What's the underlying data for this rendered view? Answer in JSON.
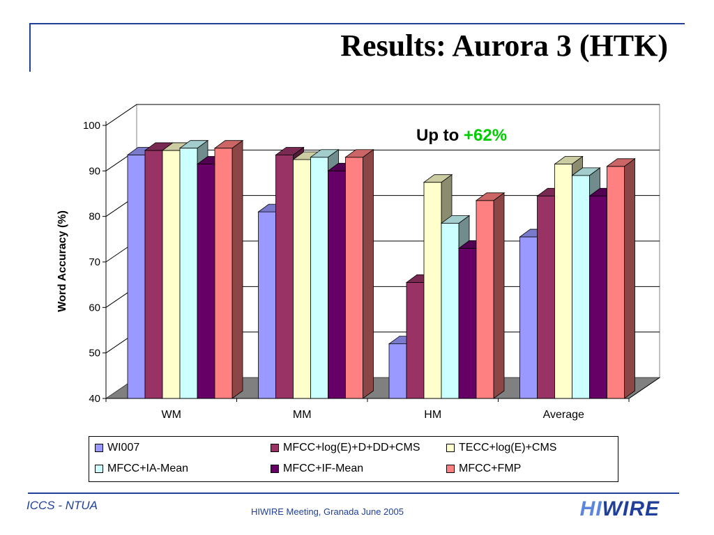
{
  "slide": {
    "title": "Results: Aurora 3 (HTK)",
    "footer_left": "ICCS - NTUA",
    "footer_center": "HIWIRE Meeting, Granada June 2005",
    "logo_part1": "HI",
    "logo_part2": "WIRE",
    "accent_color": "#1f3f9a"
  },
  "chart_data": {
    "type": "bar",
    "title": "",
    "xlabel": "",
    "ylabel": "Word Accuracy (%)",
    "ylim": [
      40,
      100
    ],
    "yticks": [
      40,
      50,
      60,
      70,
      80,
      90,
      100
    ],
    "grid": true,
    "legend_position": "bottom",
    "categories": [
      "WM",
      "MM",
      "HM",
      "Average"
    ],
    "annotation": {
      "prefix": "Up to ",
      "value": "+62%",
      "value_color": "#00cc00"
    },
    "series": [
      {
        "name": "WI007",
        "color": "#9999ff",
        "values": [
          93.5,
          81.0,
          52.0,
          75.5
        ]
      },
      {
        "name": "MFCC+log(E)+D+DD+CMS",
        "color": "#993366",
        "values": [
          94.5,
          93.5,
          65.5,
          84.5
        ]
      },
      {
        "name": "TECC+log(E)+CMS",
        "color": "#ffffcc",
        "values": [
          94.5,
          92.5,
          87.5,
          91.5
        ]
      },
      {
        "name": "MFCC+IA-Mean",
        "color": "#ccffff",
        "values": [
          95.0,
          93.0,
          78.5,
          89.0
        ]
      },
      {
        "name": "MFCC+IF-Mean",
        "color": "#660066",
        "values": [
          91.5,
          90.0,
          73.0,
          84.5
        ]
      },
      {
        "name": "MFCC+FMP",
        "color": "#ff8080",
        "values": [
          95.0,
          93.0,
          83.5,
          91.0
        ]
      }
    ]
  }
}
